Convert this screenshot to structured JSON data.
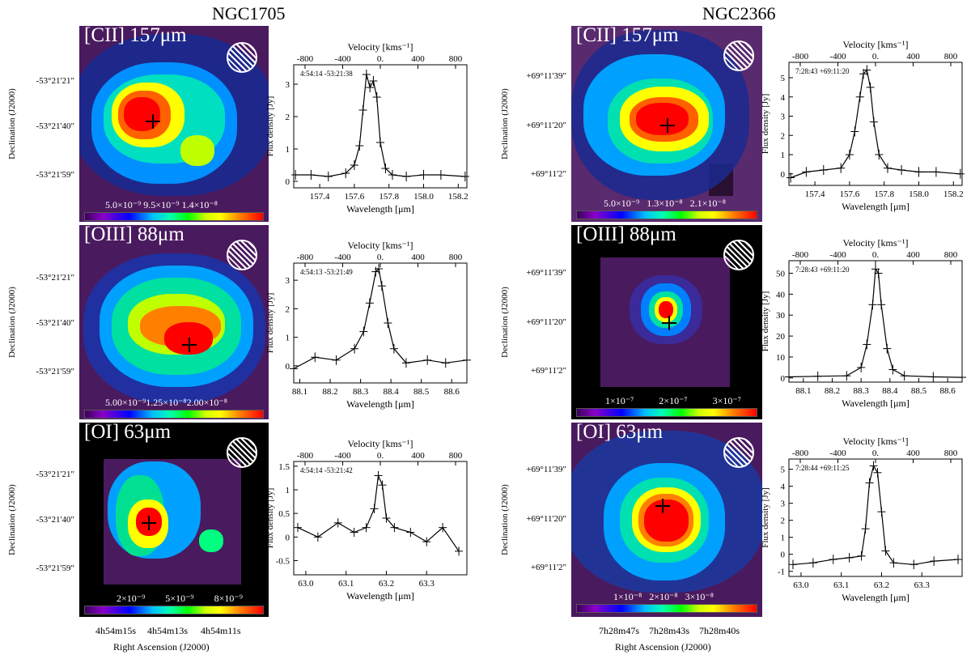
{
  "galaxies": [
    {
      "name": "NGC1705",
      "dec_label": "Declination (J2000)",
      "dec_ticks": [
        "-53°21'21\"",
        "-53°21'40\"",
        "-53°21'59\""
      ],
      "ra_ticks": [
        "4h54m15s",
        "4h54m13s",
        "4h54m11s"
      ],
      "ra_label": "Right Ascension (J2000)",
      "panels": [
        {
          "line": "[CII] 157μm",
          "colorbar": [
            "5.0×10⁻⁹",
            "9.5×10⁻⁹",
            "1.4×10⁻⁸"
          ],
          "coord": "4:54:14 -53:21:38"
        },
        {
          "line": "[OIII] 88μm",
          "colorbar": [
            "5.00×10⁻⁹",
            "1.25×10⁻⁸",
            "2.00×10⁻⁸"
          ],
          "coord": "4:54:13 -53:21:49"
        },
        {
          "line": "[OI] 63μm",
          "colorbar": [
            "2×10⁻⁹",
            "5×10⁻⁹",
            "8×10⁻⁹"
          ],
          "coord": "4:54:14 -53:21:42"
        }
      ]
    },
    {
      "name": "NGC2366",
      "dec_label": "Declination (J2000)",
      "dec_ticks": [
        "+69°11'39\"",
        "+69°11'20\"",
        "+69°11'2\""
      ],
      "ra_ticks": [
        "7h28m47s",
        "7h28m43s",
        "7h28m40s"
      ],
      "ra_label": "Right Ascension (J2000)",
      "panels": [
        {
          "line": "[CII] 157μm",
          "colorbar": [
            "5.0×10⁻⁹",
            "1.3×10⁻⁸",
            "2.1×10⁻⁸"
          ],
          "coord": "7:28:43 +69:11:20"
        },
        {
          "line": "[OIII] 88μm",
          "colorbar": [
            "1×10⁻⁷",
            "2×10⁻⁷",
            "3×10⁻⁷"
          ],
          "coord": "7:28:43 +69:11:20"
        },
        {
          "line": "[OI] 63μm",
          "colorbar": [
            "1×10⁻⁸",
            "2×10⁻⁸",
            "3×10⁻⁸"
          ],
          "coord": "7:28:44 +69:11:25"
        }
      ]
    }
  ],
  "chart_data": [
    {
      "type": "line",
      "galaxy": "NGC1705",
      "line": "[CII] 157μm",
      "xlabel": "Wavelength [μm]",
      "ylabel": "Flux density [Jy]",
      "top_label": "Velocity [kms⁻¹]",
      "xlim": [
        157.25,
        158.25
      ],
      "ylim": [
        -0.2,
        3.6
      ],
      "xticks": [
        157.4,
        157.6,
        157.8,
        158.0,
        158.2
      ],
      "yticks": [
        0,
        1,
        2,
        3
      ],
      "vticks": [
        "-800",
        "-400",
        "0.",
        "400",
        "800"
      ],
      "x": [
        157.26,
        157.35,
        157.45,
        157.55,
        157.6,
        157.63,
        157.65,
        157.67,
        157.69,
        157.71,
        157.73,
        157.75,
        157.78,
        157.82,
        157.9,
        158.0,
        158.1,
        158.24
      ],
      "y": [
        0.2,
        0.2,
        0.15,
        0.25,
        0.5,
        1.1,
        2.2,
        3.3,
        2.9,
        3.1,
        2.6,
        1.2,
        0.4,
        0.2,
        0.15,
        0.2,
        0.2,
        0.15
      ]
    },
    {
      "type": "line",
      "galaxy": "NGC1705",
      "line": "[OIII] 88μm",
      "xlabel": "Wavelength [μm]",
      "ylabel": "Flux density [Jy]",
      "top_label": "Velocity [kms⁻¹]",
      "xlim": [
        88.08,
        88.65
      ],
      "ylim": [
        -0.6,
        3.6
      ],
      "xticks": [
        88.1,
        88.2,
        88.3,
        88.4,
        88.5,
        88.6
      ],
      "yticks": [
        0,
        1,
        2,
        3
      ],
      "vticks": [
        "-800",
        "-400",
        "0.",
        "400",
        "800"
      ],
      "x": [
        88.08,
        88.15,
        88.22,
        88.28,
        88.31,
        88.33,
        88.35,
        88.36,
        88.37,
        88.39,
        88.41,
        88.45,
        88.52,
        88.58,
        88.65
      ],
      "y": [
        -0.1,
        0.3,
        0.2,
        0.6,
        1.2,
        2.2,
        3.3,
        3.4,
        2.8,
        1.5,
        0.6,
        0.1,
        0.2,
        0.1,
        0.2
      ]
    },
    {
      "type": "line",
      "galaxy": "NGC1705",
      "line": "[OI] 63μm",
      "xlabel": "Wavelength [μm]",
      "ylabel": "Flux density [Jy]",
      "top_label": "Velocity [kms⁻¹]",
      "xlim": [
        62.97,
        63.4
      ],
      "ylim": [
        -0.8,
        1.6
      ],
      "xticks": [
        63.0,
        63.1,
        63.2,
        63.3
      ],
      "yticks": [
        -0.5,
        0.0,
        0.5,
        1.0,
        1.5
      ],
      "vticks": [
        "-800",
        "-400",
        "0.",
        "400",
        "800"
      ],
      "x": [
        62.98,
        63.03,
        63.08,
        63.12,
        63.15,
        63.17,
        63.18,
        63.19,
        63.2,
        63.22,
        63.26,
        63.3,
        63.34,
        63.38
      ],
      "y": [
        0.2,
        0.0,
        0.3,
        0.1,
        0.2,
        0.6,
        1.3,
        1.1,
        0.4,
        0.2,
        0.1,
        -0.1,
        0.2,
        -0.3
      ]
    },
    {
      "type": "line",
      "galaxy": "NGC2366",
      "line": "[CII] 157μm",
      "xlabel": "Wavelength [μm]",
      "ylabel": "Flux density [Jy]",
      "top_label": "Velocity [kms⁻¹]",
      "xlim": [
        157.25,
        158.25
      ],
      "ylim": [
        -0.6,
        5.8
      ],
      "xticks": [
        157.4,
        157.6,
        157.8,
        158.0,
        158.2
      ],
      "yticks": [
        0,
        1,
        2,
        3,
        4,
        5
      ],
      "vticks": [
        "-800",
        "-400",
        "0.",
        "400",
        "800"
      ],
      "x": [
        157.26,
        157.35,
        157.45,
        157.55,
        157.6,
        157.63,
        157.66,
        157.68,
        157.7,
        157.72,
        157.74,
        157.77,
        157.82,
        157.9,
        158.0,
        158.1,
        158.24
      ],
      "y": [
        -0.2,
        0.1,
        0.2,
        0.3,
        1.0,
        2.2,
        4.0,
        5.2,
        5.4,
        4.5,
        2.7,
        1.0,
        0.3,
        0.2,
        0.1,
        0.1,
        0.0
      ]
    },
    {
      "type": "line",
      "galaxy": "NGC2366",
      "line": "[OIII] 88μm",
      "xlabel": "Wavelength [μm]",
      "ylabel": "Flux density [Jy]",
      "top_label": "Velocity [kms⁻¹]",
      "xlim": [
        88.05,
        88.65
      ],
      "ylim": [
        -2,
        56
      ],
      "xticks": [
        88.1,
        88.2,
        88.3,
        88.4,
        88.5,
        88.6
      ],
      "yticks": [
        0,
        10,
        20,
        30,
        40,
        50
      ],
      "vticks": [
        "-800",
        "-400",
        "0.",
        "400",
        "800"
      ],
      "x": [
        88.05,
        88.15,
        88.25,
        88.3,
        88.32,
        88.34,
        88.35,
        88.36,
        88.37,
        88.39,
        88.41,
        88.45,
        88.55,
        88.65
      ],
      "y": [
        0.5,
        0.8,
        1.0,
        5,
        16,
        35,
        52,
        50,
        35,
        14,
        4,
        1,
        0.5,
        0.3
      ]
    },
    {
      "type": "line",
      "galaxy": "NGC2366",
      "line": "[OI] 63μm",
      "xlabel": "Wavelength [μm]",
      "ylabel": "Flux density [Jy]",
      "top_label": "Velocity [kms⁻¹]",
      "xlim": [
        62.97,
        63.4
      ],
      "ylim": [
        -1.3,
        5.6
      ],
      "xticks": [
        63.0,
        63.1,
        63.2,
        63.3
      ],
      "yticks": [
        -1,
        0,
        1,
        2,
        3,
        4,
        5
      ],
      "vticks": [
        "-800",
        "-400",
        "0.",
        "400",
        "800"
      ],
      "x": [
        62.98,
        63.03,
        63.08,
        63.12,
        63.15,
        63.16,
        63.17,
        63.18,
        63.19,
        63.2,
        63.21,
        63.23,
        63.28,
        63.33,
        63.39
      ],
      "y": [
        -0.6,
        -0.5,
        -0.3,
        -0.2,
        -0.1,
        1.5,
        4.2,
        5.2,
        4.8,
        2.5,
        0.2,
        -0.5,
        -0.6,
        -0.4,
        -0.3
      ]
    }
  ]
}
